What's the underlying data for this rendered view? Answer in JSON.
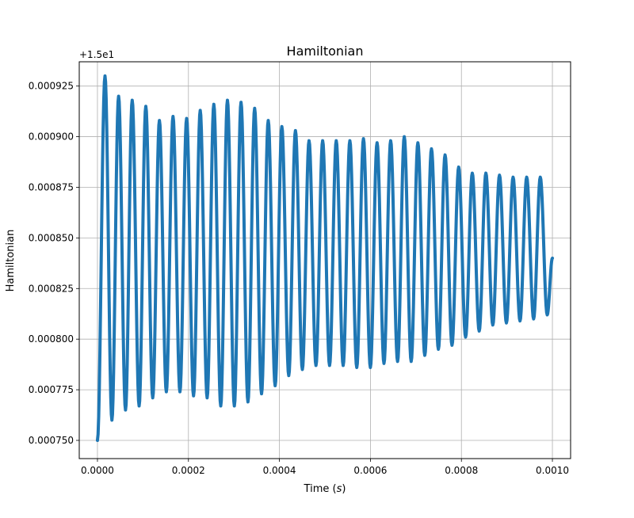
{
  "chart_data": {
    "type": "line",
    "title": "Hamiltonian",
    "xlabel": "Time (s)",
    "ylabel": "Hamiltonian",
    "offset_text": "+1.5e1",
    "xlim": [
      -4e-05,
      0.00104
    ],
    "ylim": [
      0.000741,
      0.000937
    ],
    "xticks": [
      0.0,
      0.0002,
      0.0004,
      0.0006,
      0.0008,
      0.001
    ],
    "xtick_labels": [
      "0.0000",
      "0.0002",
      "0.0004",
      "0.0006",
      "0.0008",
      "0.0010"
    ],
    "yticks": [
      0.00075,
      0.000775,
      0.0008,
      0.000825,
      0.00085,
      0.000875,
      0.0009,
      0.000925
    ],
    "ytick_labels": [
      "0.000750",
      "0.000775",
      "0.000800",
      "0.000825",
      "0.000850",
      "0.000875",
      "0.000900",
      "0.000925"
    ],
    "grid": true,
    "series": [
      {
        "color": "#1f77b4",
        "x_start": 0.0,
        "x_end": 0.001,
        "y_start": 0.00075,
        "y_end": 0.00084,
        "peaks": [
          [
            1.66e-05,
            0.00093
          ],
          [
            4.65e-05,
            0.00092
          ],
          [
            7.64e-05,
            0.000918
          ],
          [
            0.0001063,
            0.000915
          ],
          [
            0.0001362,
            0.000908
          ],
          [
            0.0001661,
            0.00091
          ],
          [
            0.000196,
            0.000909
          ],
          [
            0.0002259,
            0.000913
          ],
          [
            0.0002558,
            0.000916
          ],
          [
            0.0002857,
            0.000918
          ],
          [
            0.0003156,
            0.000917
          ],
          [
            0.0003455,
            0.000914
          ],
          [
            0.0003754,
            0.000908
          ],
          [
            0.0004053,
            0.000905
          ],
          [
            0.0004352,
            0.000903
          ],
          [
            0.0004651,
            0.000898
          ],
          [
            0.000495,
            0.000898
          ],
          [
            0.0005249,
            0.000898
          ],
          [
            0.0005548,
            0.000898
          ],
          [
            0.0005847,
            0.000899
          ],
          [
            0.0006146,
            0.000897
          ],
          [
            0.0006445,
            0.000898
          ],
          [
            0.0006744,
            0.0009
          ],
          [
            0.0007043,
            0.000897
          ],
          [
            0.0007342,
            0.000894
          ],
          [
            0.0007641,
            0.000891
          ],
          [
            0.000794,
            0.000885
          ],
          [
            0.0008239,
            0.000882
          ],
          [
            0.0008538,
            0.000882
          ],
          [
            0.0008837,
            0.000881
          ],
          [
            0.0009136,
            0.00088
          ],
          [
            0.0009435,
            0.00088
          ],
          [
            0.0009734,
            0.00088
          ]
        ],
        "troughs": [
          [
            3.18e-05,
            0.00076
          ],
          [
            6.17e-05,
            0.000765
          ],
          [
            9.16e-05,
            0.000767
          ],
          [
            0.0001215,
            0.000771
          ],
          [
            0.0001514,
            0.000774
          ],
          [
            0.0001813,
            0.000774
          ],
          [
            0.0002112,
            0.000772
          ],
          [
            0.0002411,
            0.000771
          ],
          [
            0.000271,
            0.000767
          ],
          [
            0.0003009,
            0.000767
          ],
          [
            0.0003308,
            0.000769
          ],
          [
            0.0003607,
            0.000773
          ],
          [
            0.0003906,
            0.000777
          ],
          [
            0.0004205,
            0.000782
          ],
          [
            0.0004504,
            0.000785
          ],
          [
            0.0004803,
            0.000787
          ],
          [
            0.0005102,
            0.000787
          ],
          [
            0.0005401,
            0.000787
          ],
          [
            0.00057,
            0.000786
          ],
          [
            0.0005999,
            0.000786
          ],
          [
            0.0006298,
            0.000788
          ],
          [
            0.0006597,
            0.000789
          ],
          [
            0.0006896,
            0.000789
          ],
          [
            0.0007195,
            0.000792
          ],
          [
            0.0007494,
            0.000795
          ],
          [
            0.0007793,
            0.000797
          ],
          [
            0.0008092,
            0.000801
          ],
          [
            0.0008391,
            0.000804
          ],
          [
            0.000869,
            0.000807
          ],
          [
            0.0008989,
            0.000808
          ],
          [
            0.0009288,
            0.000809
          ],
          [
            0.0009587,
            0.00081
          ],
          [
            0.0009886,
            0.000812
          ]
        ]
      }
    ]
  }
}
